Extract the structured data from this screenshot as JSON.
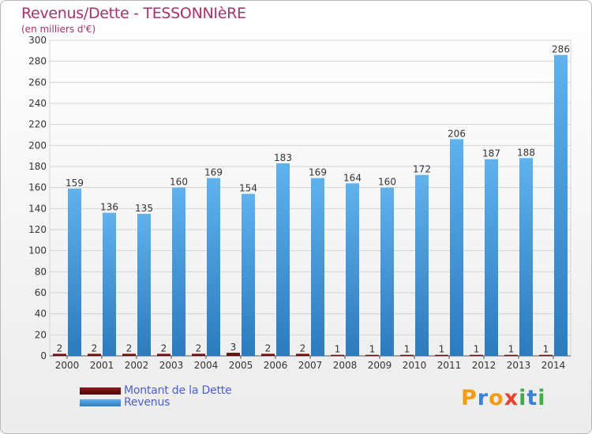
{
  "header": {
    "title": "Revenus/Dette - TESSONNIèRE",
    "subtitle": "(en milliers d'€)"
  },
  "chart_data": {
    "type": "bar",
    "title": "Revenus/Dette - TESSONNIèRE",
    "ylabel": "(en milliers d'€)",
    "xlabel": "",
    "categories": [
      "2000",
      "2001",
      "2002",
      "2003",
      "2004",
      "2005",
      "2006",
      "2007",
      "2008",
      "2009",
      "2010",
      "2011",
      "2012",
      "2013",
      "2014"
    ],
    "series": [
      {
        "name": "Montant de la Dette",
        "color": "#6b0d0d",
        "values": [
          2,
          2,
          2,
          2,
          2,
          3,
          2,
          2,
          1,
          1,
          1,
          1,
          1,
          1,
          1
        ]
      },
      {
        "name": "Revenus",
        "color": "#4ba3e3",
        "values": [
          159,
          136,
          135,
          160,
          169,
          154,
          183,
          169,
          164,
          160,
          172,
          206,
          187,
          188,
          286
        ]
      }
    ],
    "ylim": [
      0,
      300
    ],
    "yticks": [
      0,
      20,
      40,
      60,
      80,
      100,
      120,
      140,
      160,
      180,
      200,
      220,
      240,
      260,
      280,
      300
    ],
    "grid": true,
    "legend_position": "bottom-left"
  },
  "legend": {
    "items": [
      {
        "label": "Montant de la Dette",
        "color": "#6b0d0d"
      },
      {
        "label": "Revenus",
        "color": "#4ba3e3"
      }
    ]
  },
  "logo": {
    "letters": [
      "P",
      "r",
      "o",
      "x",
      "i",
      "t",
      "i"
    ],
    "colors": [
      "#f39c12",
      "#3b82d6",
      "#f39c12",
      "#e8412c",
      "#3fae49",
      "#3b82d6",
      "#3fae49"
    ]
  }
}
